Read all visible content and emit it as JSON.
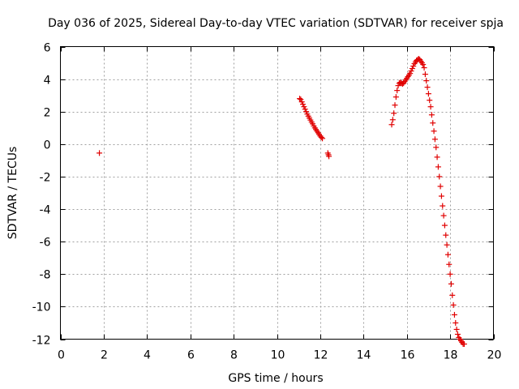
{
  "chart_data": {
    "type": "scatter",
    "title": "Day 036 of 2025, Sidereal Day-to-day VTEC variation (SDTVAR) for receiver spja",
    "xlabel": "GPS time / hours",
    "ylabel": "SDTVAR / TECUs",
    "xlim": [
      0,
      20
    ],
    "ylim": [
      -12,
      6
    ],
    "x_ticks": [
      0,
      2,
      4,
      6,
      8,
      10,
      12,
      14,
      16,
      18,
      20
    ],
    "y_ticks": [
      -12,
      -10,
      -8,
      -6,
      -4,
      -2,
      0,
      2,
      4,
      6
    ],
    "grid": true,
    "legend": "none",
    "marker": "+",
    "color": "#e00000",
    "series": [
      {
        "segments": [
          {
            "x": [
              1.8
            ],
            "y": [
              -0.55
            ]
          },
          {
            "x": [
              11.05,
              11.1,
              11.15,
              11.2,
              11.25,
              11.3,
              11.35,
              11.4,
              11.45,
              11.5,
              11.55,
              11.6,
              11.65,
              11.7,
              11.75,
              11.8,
              11.85,
              11.9,
              11.95,
              12.0,
              12.05,
              12.1
            ],
            "y": [
              2.8,
              2.75,
              2.6,
              2.45,
              2.3,
              2.15,
              2.0,
              1.85,
              1.72,
              1.6,
              1.48,
              1.36,
              1.25,
              1.12,
              1.0,
              0.9,
              0.8,
              0.7,
              0.6,
              0.5,
              0.42,
              0.35
            ]
          },
          {
            "x": [
              12.35,
              12.38,
              12.4
            ],
            "y": [
              -0.55,
              -0.65,
              -0.75
            ]
          },
          {
            "x": [
              15.3,
              15.35,
              15.4,
              15.45,
              15.5,
              15.55,
              15.6,
              15.65,
              15.7,
              15.75,
              15.8,
              15.85,
              15.9,
              15.95,
              16.0,
              16.05,
              16.1,
              16.15,
              16.2,
              16.25,
              16.3,
              16.35,
              16.4,
              16.45,
              16.5,
              16.55,
              16.6,
              16.65,
              16.7,
              16.75,
              16.8,
              16.85,
              16.9,
              16.95,
              17.0,
              17.05,
              17.1,
              17.15,
              17.2,
              17.25,
              17.3,
              17.35,
              17.4,
              17.45,
              17.5,
              17.55,
              17.6,
              17.65,
              17.7,
              17.75,
              17.8,
              17.85,
              17.9,
              17.95,
              18.0,
              18.05,
              18.1,
              18.15,
              18.2,
              18.25,
              18.3,
              18.35,
              18.4,
              18.45,
              18.5,
              18.55,
              18.6,
              18.65
            ],
            "y": [
              1.2,
              1.5,
              1.9,
              2.4,
              2.9,
              3.3,
              3.6,
              3.75,
              3.8,
              3.75,
              3.7,
              3.75,
              3.85,
              3.95,
              4.05,
              4.15,
              4.25,
              4.35,
              4.5,
              4.65,
              4.8,
              4.95,
              5.05,
              5.15,
              5.2,
              5.25,
              5.2,
              5.1,
              5.0,
              4.9,
              4.7,
              4.3,
              3.9,
              3.5,
              3.1,
              2.7,
              2.3,
              1.8,
              1.3,
              0.8,
              0.3,
              -0.2,
              -0.8,
              -1.4,
              -2.0,
              -2.6,
              -3.2,
              -3.8,
              -4.4,
              -5.0,
              -5.6,
              -6.2,
              -6.8,
              -7.4,
              -8.0,
              -8.6,
              -9.3,
              -9.9,
              -10.5,
              -11.0,
              -11.4,
              -11.7,
              -11.9,
              -12.0,
              -12.1,
              -12.2,
              -12.3,
              -12.4
            ]
          }
        ]
      }
    ]
  }
}
